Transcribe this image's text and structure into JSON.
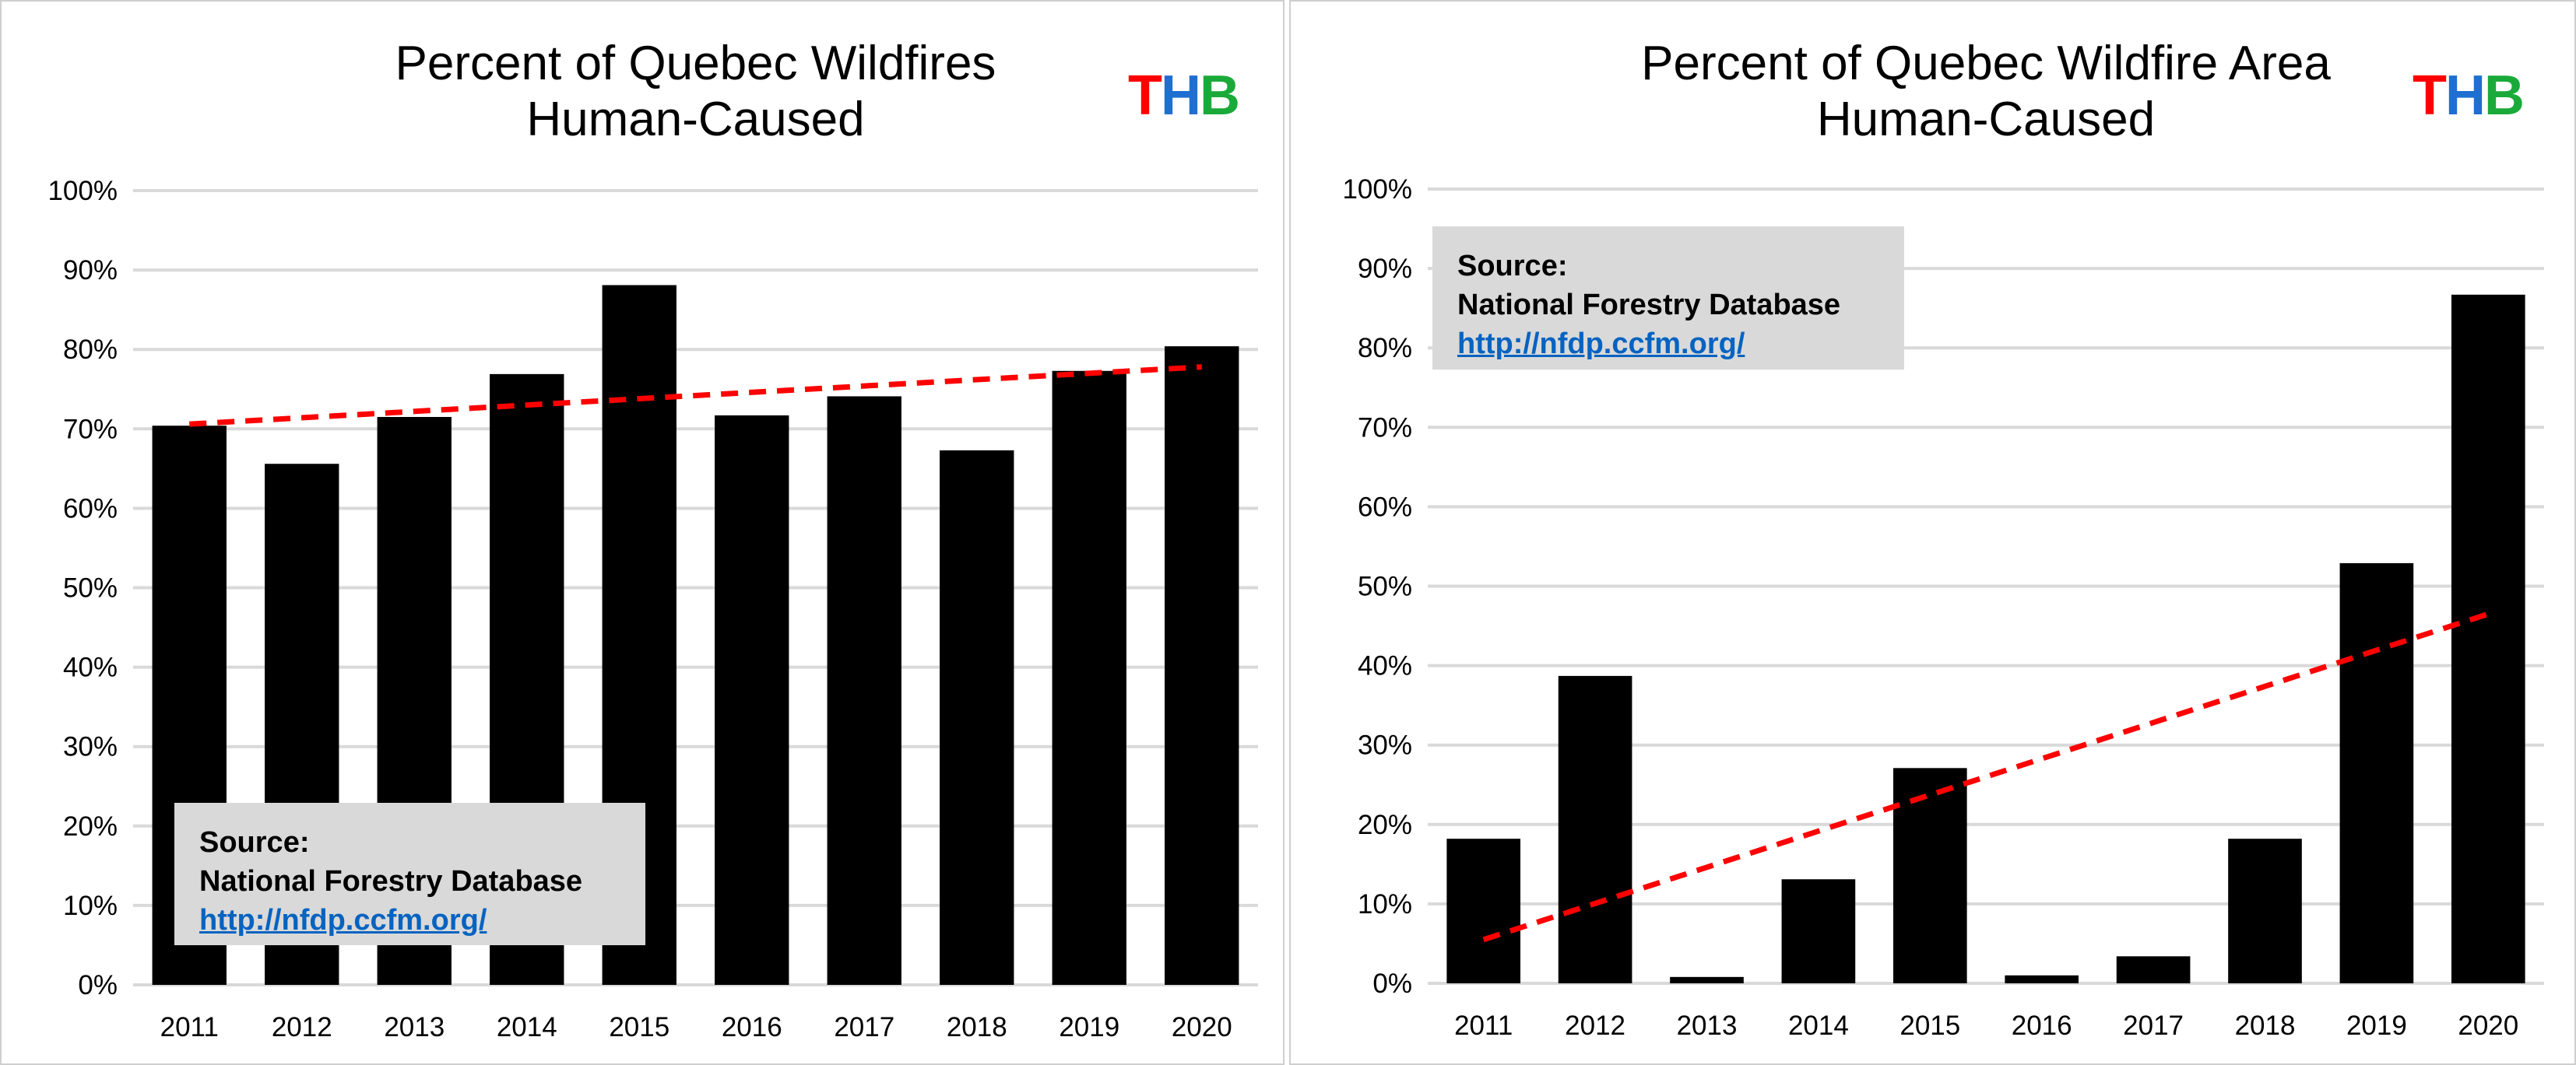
{
  "chart_data": [
    {
      "type": "bar",
      "title": [
        "Percent of Quebec Wildfires",
        "Human-Caused"
      ],
      "categories": [
        "2011",
        "2012",
        "2013",
        "2014",
        "2015",
        "2016",
        "2017",
        "2018",
        "2019",
        "2020"
      ],
      "values": [
        70.4,
        65.6,
        71.5,
        76.9,
        88.1,
        71.7,
        74.1,
        67.3,
        77.3,
        80.4
      ],
      "trendline": {
        "start": 70.6,
        "end": 77.8,
        "style": "dashed",
        "color": "#ff0000"
      },
      "yticks": [
        "0%",
        "10%",
        "20%",
        "30%",
        "40%",
        "50%",
        "60%",
        "70%",
        "80%",
        "90%",
        "100%"
      ],
      "ylim": [
        0,
        100
      ],
      "grid": true,
      "bar_color": "#000000",
      "source": {
        "label": "Source:",
        "name": "National Forestry Database",
        "link": "http://nfdp.ccfm.org/",
        "placement": "bottom-left"
      },
      "logo": "THB"
    },
    {
      "type": "bar",
      "title": [
        "Percent of Quebec Wildfire Area",
        "Human-Caused"
      ],
      "categories": [
        "2011",
        "2012",
        "2013",
        "2014",
        "2015",
        "2016",
        "2017",
        "2018",
        "2019",
        "2020"
      ],
      "values": [
        18.2,
        38.7,
        0.8,
        13.1,
        27.1,
        1.0,
        3.4,
        18.2,
        52.9,
        86.7
      ],
      "trendline": {
        "start": 5.5,
        "end": 46.5,
        "style": "dashed",
        "color": "#ff0000"
      },
      "yticks": [
        "0%",
        "10%",
        "20%",
        "30%",
        "40%",
        "50%",
        "60%",
        "70%",
        "80%",
        "90%",
        "100%"
      ],
      "ylim": [
        0,
        100
      ],
      "grid": true,
      "bar_color": "#000000",
      "source": {
        "label": "Source:",
        "name": "National Forestry Database",
        "link": "http://nfdp.ccfm.org/",
        "placement": "top-left"
      },
      "logo": "THB"
    }
  ],
  "logo_colors": {
    "T": "#ff0000",
    "H": "#1f6fd1",
    "B": "#1aaa3a"
  }
}
